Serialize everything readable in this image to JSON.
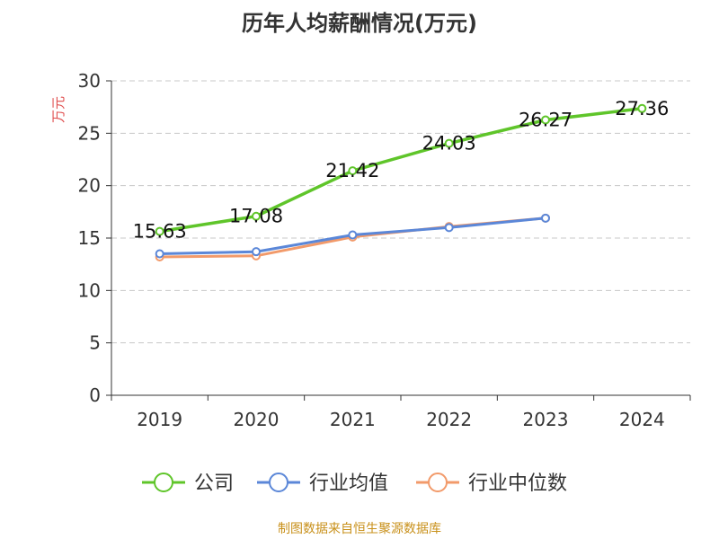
{
  "colors": {
    "company": "#5fc52a",
    "avg": "#5b87d8",
    "median": "#f29a6a",
    "unit": "#e05050",
    "source": "#c8901a"
  },
  "chart_data": {
    "type": "line",
    "title": "历年人均薪酬情况(万元)",
    "ylabel": "万元",
    "categories": [
      "2019",
      "2020",
      "2021",
      "2022",
      "2023",
      "2024"
    ],
    "ylim": [
      0,
      30
    ],
    "yticks": [
      0,
      5,
      10,
      15,
      20,
      25,
      30
    ],
    "grid": true,
    "legend_position": "bottom",
    "series": [
      {
        "name": "公司",
        "color": "#5fc52a",
        "values": [
          15.63,
          17.08,
          21.42,
          24.03,
          26.27,
          27.36
        ],
        "labels": [
          "15.63",
          "17.08",
          "21.42",
          "24.03",
          "26.27",
          "27.36"
        ]
      },
      {
        "name": "行业均值",
        "color": "#5b87d8",
        "values": [
          13.5,
          13.7,
          15.3,
          16.0,
          16.9,
          null
        ]
      },
      {
        "name": "行业中位数",
        "color": "#f29a6a",
        "values": [
          13.2,
          13.3,
          15.1,
          16.1,
          16.9,
          null
        ]
      }
    ]
  },
  "footer": {
    "source": "制图数据来自恒生聚源数据库"
  }
}
